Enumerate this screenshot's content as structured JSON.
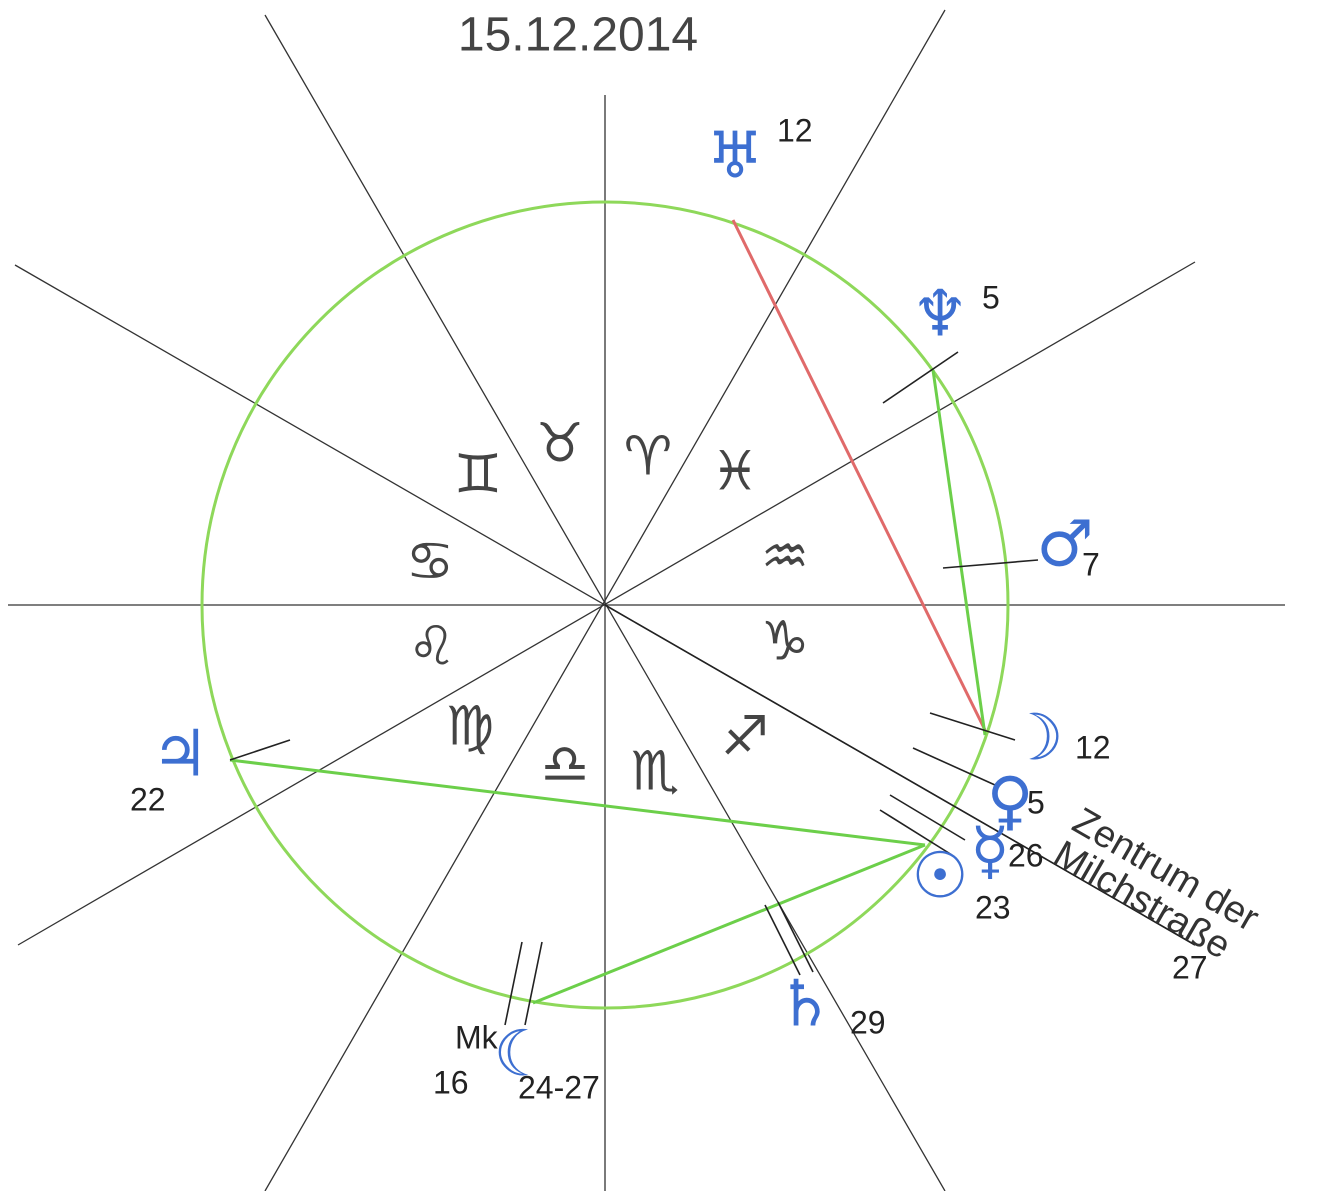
{
  "title": "15.12.2014",
  "zodiac_signs": [
    "♈",
    "♉",
    "♊",
    "♋",
    "♌",
    "♍",
    "♎",
    "♏",
    "♐",
    "♑",
    "♒",
    "♓"
  ],
  "planets": [
    {
      "symbol": "♅",
      "degree": "12"
    },
    {
      "symbol": "♆",
      "degree": "5"
    },
    {
      "symbol": "♂",
      "degree": "7"
    },
    {
      "symbol": "☽",
      "degree": "12"
    },
    {
      "symbol": "♀",
      "degree": "5"
    },
    {
      "symbol": "☿",
      "degree": "26"
    },
    {
      "symbol": "☉",
      "degree": "23"
    },
    {
      "symbol": "♄",
      "degree": "29"
    },
    {
      "symbol": "♃",
      "degree": "22"
    },
    {
      "symbol": "☾",
      "degree": "24-27"
    }
  ],
  "mk_label": "Mk",
  "mk_degree": "16",
  "galactic_center": {
    "line1": "Zentrum der",
    "line2": "Milchstraße",
    "degree": "27"
  }
}
